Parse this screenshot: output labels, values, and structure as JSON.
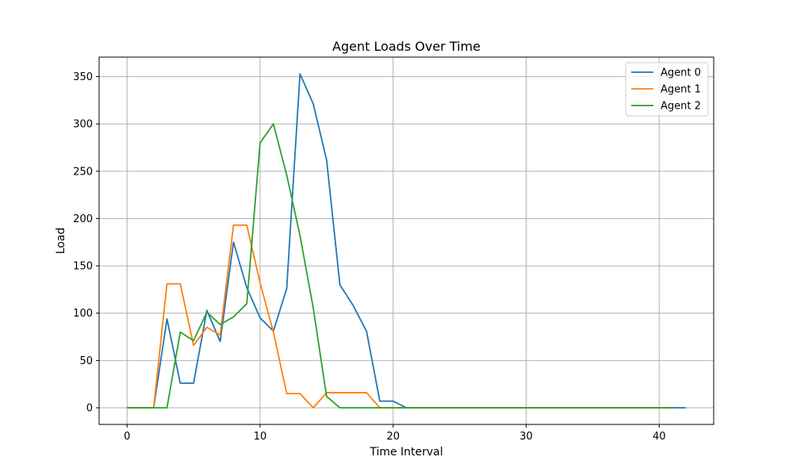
{
  "chart_data": {
    "type": "line",
    "title": "Agent Loads Over Time",
    "xlabel": "Time Interval",
    "ylabel": "Load",
    "xlim": [
      -2.1,
      44.1
    ],
    "ylim": [
      -17.6,
      370.6
    ],
    "xticks": [
      0,
      10,
      20,
      30,
      40
    ],
    "yticks": [
      0,
      50,
      100,
      150,
      200,
      250,
      300,
      350
    ],
    "grid": true,
    "legend_position": "top-right",
    "series": [
      {
        "name": "Agent 0",
        "color": "#1f77b4",
        "x": [
          0,
          1,
          2,
          3,
          4,
          5,
          6,
          7,
          8,
          9,
          10,
          11,
          12,
          13,
          14,
          15,
          16,
          17,
          18,
          19,
          20,
          21,
          22,
          23,
          24,
          25,
          26,
          27,
          28,
          29,
          30,
          31,
          32,
          33,
          34,
          35,
          36,
          37,
          38,
          39,
          40,
          41,
          42
        ],
        "values": [
          0,
          0,
          0,
          94,
          26,
          26,
          103,
          70,
          175,
          127,
          95,
          81,
          126,
          353,
          321,
          262,
          130,
          108,
          81,
          7,
          7,
          0,
          0,
          0,
          0,
          0,
          0,
          0,
          0,
          0,
          0,
          0,
          0,
          0,
          0,
          0,
          0,
          0,
          0,
          0,
          0,
          0,
          0
        ]
      },
      {
        "name": "Agent 1",
        "color": "#ff7f0e",
        "x": [
          0,
          1,
          2,
          3,
          4,
          5,
          6,
          7,
          8,
          9,
          10,
          11,
          12,
          13,
          14,
          15,
          16,
          17,
          18,
          19,
          20,
          21,
          22,
          23,
          24,
          25,
          26,
          27,
          28,
          29,
          30,
          31,
          32,
          33,
          34,
          35,
          36,
          37,
          38,
          39,
          40,
          41
        ],
        "values": [
          0,
          0,
          0,
          131,
          131,
          66,
          85,
          77,
          193,
          193,
          132,
          80,
          15,
          15,
          0,
          16,
          16,
          16,
          16,
          0,
          0,
          0,
          0,
          0,
          0,
          0,
          0,
          0,
          0,
          0,
          0,
          0,
          0,
          0,
          0,
          0,
          0,
          0,
          0,
          0,
          0,
          0
        ]
      },
      {
        "name": "Agent 2",
        "color": "#2ca02c",
        "x": [
          0,
          1,
          2,
          3,
          4,
          5,
          6,
          7,
          8,
          9,
          10,
          11,
          12,
          13,
          14,
          15,
          16,
          17,
          18,
          19,
          20,
          21,
          22,
          23,
          24,
          25,
          26,
          27,
          28,
          29,
          30,
          31,
          32,
          33,
          34,
          35,
          36,
          37,
          38,
          39,
          40,
          41
        ],
        "values": [
          0,
          0,
          0,
          0,
          80,
          71,
          101,
          88,
          96,
          110,
          280,
          300,
          246,
          182,
          105,
          12,
          0,
          0,
          0,
          0,
          0,
          0,
          0,
          0,
          0,
          0,
          0,
          0,
          0,
          0,
          0,
          0,
          0,
          0,
          0,
          0,
          0,
          0,
          0,
          0,
          0,
          0
        ]
      }
    ]
  }
}
